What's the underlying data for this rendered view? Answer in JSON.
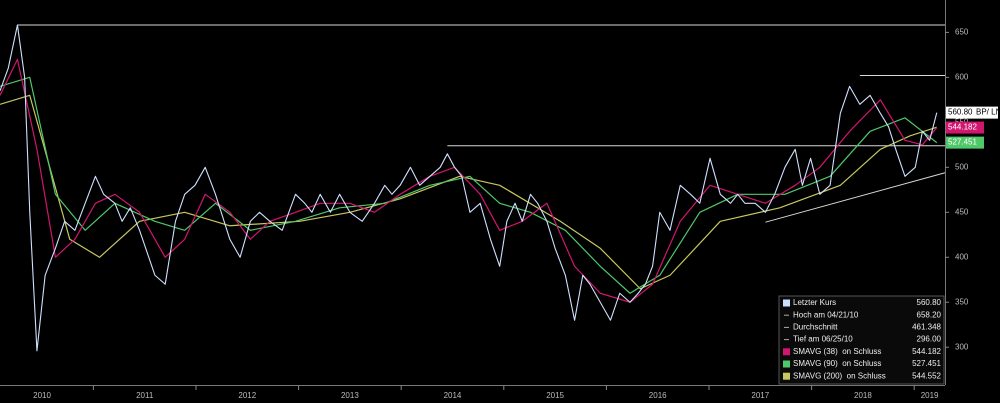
{
  "chart_data": {
    "type": "line",
    "xlim": [
      2010.09,
      2019.3
    ],
    "ylim": [
      258,
      686
    ],
    "xticks": [
      2010,
      2011,
      2012,
      2013,
      2014,
      2015,
      2016,
      2017,
      2018,
      2019
    ],
    "yticks": [
      300,
      350,
      400,
      450,
      500,
      550,
      600,
      650
    ],
    "ticker": "BP/ LN",
    "series": [
      {
        "name": "Letzter Kurs",
        "color": "#cfe0ff",
        "axis_box": true,
        "last_value": 560.8,
        "last_label": "560.80",
        "x": [
          2010.09,
          2010.17,
          2010.26,
          2010.33,
          2010.38,
          2010.45,
          2010.53,
          2010.63,
          2010.72,
          2010.82,
          2010.92,
          2011.02,
          2011.1,
          2011.21,
          2011.28,
          2011.36,
          2011.45,
          2011.6,
          2011.7,
          2011.8,
          2011.89,
          2011.99,
          2012.09,
          2012.19,
          2012.33,
          2012.43,
          2012.53,
          2012.62,
          2012.72,
          2012.84,
          2012.97,
          2013.06,
          2013.13,
          2013.21,
          2013.31,
          2013.4,
          2013.5,
          2013.62,
          2013.74,
          2013.84,
          2013.91,
          2013.99,
          2014.09,
          2014.18,
          2014.28,
          2014.38,
          2014.45,
          2014.52,
          2014.59,
          2014.67,
          2014.77,
          2014.87,
          2014.96,
          2015.03,
          2015.11,
          2015.18,
          2015.26,
          2015.33,
          2015.42,
          2015.5,
          2015.6,
          2015.69,
          2015.77,
          2015.84,
          2015.94,
          2016.04,
          2016.13,
          2016.23,
          2016.31,
          2016.38,
          2016.45,
          2016.52,
          2016.62,
          2016.72,
          2016.82,
          2016.91,
          2017.01,
          2017.11,
          2017.21,
          2017.28,
          2017.35,
          2017.45,
          2017.55,
          2017.64,
          2017.74,
          2017.84,
          2017.91,
          2017.99,
          2018.08,
          2018.18,
          2018.28,
          2018.37,
          2018.47,
          2018.57,
          2018.67,
          2018.75,
          2018.82,
          2018.91,
          2019.01,
          2019.08,
          2019.15,
          2019.22
        ],
        "values": [
          585,
          610,
          658.2,
          600,
          450,
          296,
          380,
          410,
          440,
          430,
          460,
          490,
          470,
          460,
          440,
          455,
          430,
          380,
          370,
          440,
          470,
          480,
          500,
          470,
          420,
          400,
          440,
          450,
          440,
          430,
          470,
          460,
          450,
          470,
          450,
          470,
          450,
          440,
          460,
          480,
          470,
          480,
          500,
          480,
          490,
          500,
          515,
          500,
          490,
          450,
          460,
          420,
          390,
          440,
          460,
          440,
          470,
          460,
          440,
          410,
          380,
          330,
          380,
          370,
          350,
          330,
          360,
          350,
          360,
          370,
          390,
          450,
          430,
          480,
          470,
          460,
          510,
          470,
          460,
          470,
          460,
          460,
          450,
          470,
          500,
          520,
          480,
          510,
          470,
          480,
          560,
          590,
          570,
          580,
          560,
          545,
          520,
          490,
          500,
          540,
          530,
          560.8
        ]
      },
      {
        "name": "SMAVG (38)  on Schluss",
        "color": "#d0166f",
        "axis_box": true,
        "last_value": 544.182,
        "last_label": "544.182",
        "x": [
          2010.09,
          2010.26,
          2010.45,
          2010.63,
          2010.82,
          2011.02,
          2011.21,
          2011.45,
          2011.7,
          2011.89,
          2012.09,
          2012.33,
          2012.53,
          2012.72,
          2012.97,
          2013.21,
          2013.5,
          2013.74,
          2013.99,
          2014.28,
          2014.52,
          2014.77,
          2014.96,
          2015.18,
          2015.42,
          2015.69,
          2015.94,
          2016.23,
          2016.45,
          2016.72,
          2017.01,
          2017.28,
          2017.55,
          2017.84,
          2018.08,
          2018.37,
          2018.67,
          2018.91,
          2019.08,
          2019.22
        ],
        "values": [
          580,
          620,
          520,
          400,
          420,
          460,
          470,
          450,
          400,
          420,
          470,
          450,
          420,
          440,
          450,
          460,
          460,
          450,
          470,
          490,
          500,
          470,
          430,
          440,
          460,
          390,
          360,
          350,
          370,
          440,
          480,
          470,
          460,
          480,
          500,
          540,
          575,
          530,
          525,
          544.182
        ]
      },
      {
        "name": "SMAVG (90)  on Schluss",
        "color": "#4fc86a",
        "axis_box": true,
        "last_value": 527.451,
        "last_label": "527.451",
        "x": [
          2010.09,
          2010.38,
          2010.63,
          2010.92,
          2011.21,
          2011.6,
          2011.89,
          2012.19,
          2012.53,
          2012.97,
          2013.4,
          2013.84,
          2014.28,
          2014.67,
          2014.96,
          2015.26,
          2015.6,
          2015.94,
          2016.23,
          2016.52,
          2016.91,
          2017.28,
          2017.74,
          2018.18,
          2018.57,
          2018.91,
          2019.22
        ],
        "values": [
          590,
          600,
          470,
          430,
          460,
          440,
          430,
          460,
          430,
          440,
          455,
          460,
          480,
          490,
          460,
          450,
          430,
          390,
          360,
          380,
          450,
          470,
          470,
          490,
          540,
          555,
          527.451
        ]
      },
      {
        "name": "SMAVG (200)  on Schluss",
        "color": "#c8c860",
        "axis_box": false,
        "last_value": 544.552,
        "last_label": "544.552",
        "x": [
          2010.09,
          2010.38,
          2010.77,
          2011.06,
          2011.45,
          2011.89,
          2012.33,
          2013.01,
          2013.5,
          2013.99,
          2014.57,
          2014.96,
          2015.55,
          2015.94,
          2016.33,
          2016.62,
          2017.11,
          2017.69,
          2018.28,
          2018.67,
          2018.96,
          2019.22
        ],
        "values": [
          570,
          580,
          420,
          400,
          440,
          450,
          435,
          440,
          450,
          465,
          490,
          480,
          440,
          410,
          365,
          380,
          440,
          455,
          480,
          520,
          535,
          544.552
        ]
      }
    ],
    "stats": [
      {
        "label": "Hoch am 04/21/10",
        "value": 658.2,
        "value_label": "658.20"
      },
      {
        "label": "Durchschnitt",
        "value": 461.348,
        "value_label": "461.348"
      },
      {
        "label": "Tief am 06/25/10",
        "value": 296,
        "value_label": "296.00"
      }
    ],
    "annotation_lines": [
      {
        "x": [
          2010.26,
          2019.3
        ],
        "y": [
          658.2,
          658.2
        ]
      },
      {
        "x": [
          2018.47,
          2019.3
        ],
        "y": [
          602,
          602
        ]
      },
      {
        "x": [
          2014.45,
          2019.3
        ],
        "y": [
          524,
          524
        ]
      },
      {
        "x": [
          2017.55,
          2019.3
        ],
        "y": [
          439,
          494
        ]
      }
    ]
  }
}
